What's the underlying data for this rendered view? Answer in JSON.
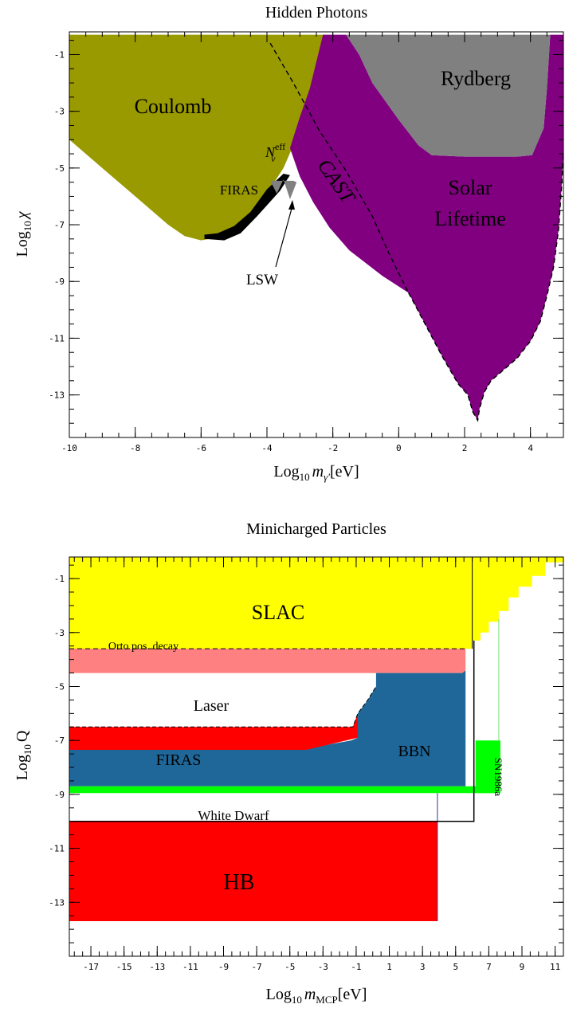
{
  "chart_data": [
    {
      "type": "area",
      "title": "Hidden Photons",
      "xlabel_main": "Log",
      "xlabel_sub": "10",
      "xlabel_var": "m",
      "xlabel_varsub": "γ'",
      "xlabel_unit": "[eV]",
      "ylabel_main": "Log",
      "ylabel_sub": "10",
      "ylabel_var": "χ",
      "xlim": [
        -10,
        5
      ],
      "ylim": [
        -14.5,
        -0.2
      ],
      "x_ticks": [
        -10,
        -8,
        -6,
        -4,
        -2,
        0,
        2,
        4
      ],
      "x_tick_labels": [
        "-10",
        "-8",
        "-6",
        "-4",
        "-2",
        "0",
        "2",
        "4"
      ],
      "y_ticks": [
        -1,
        -3,
        -5,
        -7,
        -9,
        -11,
        -13
      ],
      "y_tick_labels": [
        "-1",
        "-3",
        "-5",
        "-7",
        "-9",
        "-11",
        "-13"
      ],
      "regions": [
        {
          "name": "Coulomb",
          "label": "Coulomb",
          "color": "#999900"
        },
        {
          "name": "FIRAS",
          "label": "FIRAS",
          "color": "#000000"
        },
        {
          "name": "Rydberg",
          "label": "Rydberg",
          "color": "#808080"
        },
        {
          "name": "Solar Lifetime",
          "label_lines": [
            "Solar",
            "Lifetime"
          ],
          "color": "#800080"
        },
        {
          "name": "CAST",
          "label": "CAST",
          "style": "dashed boundary"
        },
        {
          "name": "LSW",
          "label": "LSW",
          "color": "#808080"
        }
      ],
      "neff_label": {
        "base": "N",
        "sub": "ν",
        "sup": "eff"
      },
      "boundaries": {
        "coulomb": [
          [
            -10,
            -4.0
          ],
          [
            -9,
            -5.0
          ],
          [
            -8,
            -6.0
          ],
          [
            -7,
            -7.0
          ],
          [
            -6.5,
            -7.4
          ],
          [
            -6,
            -7.55
          ],
          [
            -5.5,
            -7.45
          ],
          [
            -5,
            -7.15
          ],
          [
            -4.5,
            -6.6
          ],
          [
            -4,
            -5.9
          ],
          [
            -3.5,
            -5.0
          ],
          [
            -3.2,
            -4.2
          ],
          [
            -2.9,
            -3.0
          ],
          [
            -2.6,
            -2.2
          ],
          [
            -2.2,
            -0.3
          ],
          [
            -10,
            -0.3
          ]
        ],
        "firas": [
          [
            -5.9,
            -7.35
          ],
          [
            -5.5,
            -7.3
          ],
          [
            -5,
            -7.05
          ],
          [
            -4.5,
            -6.55
          ],
          [
            -4,
            -5.75
          ],
          [
            -3.5,
            -5.2
          ],
          [
            -3.3,
            -5.25
          ],
          [
            -3.6,
            -5.8
          ],
          [
            -4.3,
            -6.7
          ],
          [
            -4.8,
            -7.3
          ],
          [
            -5.3,
            -7.55
          ],
          [
            -5.9,
            -7.5
          ]
        ],
        "lsw": [
          [
            -3.9,
            -5.45
          ],
          [
            -3.7,
            -5.9
          ],
          [
            -3.5,
            -5.4
          ],
          [
            -3.3,
            -6.1
          ],
          [
            -3.1,
            -5.5
          ],
          [
            -2.9,
            -5.6
          ],
          [
            -3.2,
            -5.45
          ]
        ],
        "rydberg": [
          [
            -1.6,
            -0.3
          ],
          [
            -1.2,
            -1.0
          ],
          [
            -0.8,
            -2.0
          ],
          [
            0,
            -3.3
          ],
          [
            0.6,
            -4.2
          ],
          [
            1,
            -4.55
          ],
          [
            2,
            -4.6
          ],
          [
            3,
            -4.6
          ],
          [
            3.6,
            -4.6
          ],
          [
            4.05,
            -4.55
          ],
          [
            4.4,
            -3.6
          ],
          [
            4.5,
            -2.2
          ],
          [
            4.6,
            -0.3
          ]
        ],
        "solar": [
          [
            -2.3,
            -0.3
          ],
          [
            -2.7,
            -2.2
          ],
          [
            -3.0,
            -3.2
          ],
          [
            -3.3,
            -4.3
          ],
          [
            -3.0,
            -5.3
          ],
          [
            -2.6,
            -6.2
          ],
          [
            -2.1,
            -7.1
          ],
          [
            -1.5,
            -7.9
          ],
          [
            -0.5,
            -8.8
          ],
          [
            0.3,
            -9.4
          ],
          [
            0.8,
            -10.5
          ],
          [
            1.3,
            -11.6
          ],
          [
            1.8,
            -12.6
          ],
          [
            2.1,
            -13.0
          ],
          [
            2.25,
            -13.6
          ],
          [
            2.4,
            -13.9
          ],
          [
            2.45,
            -13.5
          ],
          [
            2.6,
            -12.9
          ],
          [
            2.8,
            -12.5
          ],
          [
            3.2,
            -12.1
          ],
          [
            3.6,
            -11.7
          ],
          [
            4.0,
            -11.1
          ],
          [
            4.3,
            -10.4
          ],
          [
            4.5,
            -9.5
          ],
          [
            4.7,
            -8.5
          ],
          [
            4.85,
            -7.2
          ],
          [
            4.95,
            -5.6
          ],
          [
            5,
            -4.4
          ],
          [
            5,
            -0.3
          ],
          [
            4.6,
            -0.3
          ],
          [
            4.5,
            -2.2
          ],
          [
            4.4,
            -3.6
          ],
          [
            4.05,
            -4.55
          ],
          [
            3.6,
            -4.6
          ],
          [
            3,
            -4.6
          ],
          [
            2,
            -4.6
          ],
          [
            1,
            -4.55
          ],
          [
            0.6,
            -4.2
          ],
          [
            0,
            -3.3
          ],
          [
            -0.8,
            -2.0
          ],
          [
            -1.2,
            -1.0
          ],
          [
            -1.6,
            -0.3
          ]
        ],
        "cast_line": [
          [
            -3.9,
            -0.6
          ],
          [
            -3.2,
            -2.0
          ],
          [
            -2.4,
            -3.7
          ],
          [
            -1.6,
            -5.1
          ],
          [
            -0.8,
            -6.7
          ],
          [
            -0.3,
            -8.0
          ],
          [
            0.3,
            -9.4
          ]
        ],
        "lower_dashed": [
          [
            0.3,
            -9.4
          ],
          [
            0.8,
            -10.5
          ],
          [
            1.3,
            -11.6
          ],
          [
            1.8,
            -12.6
          ],
          [
            2.1,
            -13.0
          ],
          [
            2.25,
            -13.6
          ],
          [
            2.4,
            -13.9
          ],
          [
            2.45,
            -13.5
          ],
          [
            2.6,
            -12.9
          ],
          [
            2.8,
            -12.5
          ],
          [
            3.2,
            -12.1
          ],
          [
            3.6,
            -11.7
          ],
          [
            4.0,
            -11.1
          ],
          [
            4.3,
            -10.4
          ],
          [
            4.5,
            -9.5
          ],
          [
            4.7,
            -8.5
          ],
          [
            4.85,
            -7.2
          ],
          [
            4.95,
            -5.6
          ],
          [
            5,
            -4.4
          ]
        ]
      }
    },
    {
      "type": "area",
      "title": "Minicharged Particles",
      "xlabel_main": "Log",
      "xlabel_sub": "10",
      "xlabel_var": "m",
      "xlabel_varsub": "MCP",
      "xlabel_unit": "[eV]",
      "ylabel_main": "Log",
      "ylabel_sub": "10",
      "ylabel_var": "Q",
      "xlim": [
        -18.3,
        11.5
      ],
      "ylim": [
        -15.0,
        -0.2
      ],
      "x_ticks": [
        -17,
        -15,
        -13,
        -11,
        -9,
        -7,
        -5,
        -3,
        -1,
        1,
        3,
        5,
        7,
        9,
        11
      ],
      "x_tick_labels": [
        "-17",
        "-15",
        "-13",
        "-11",
        "-9",
        "-7",
        "-5",
        "-3",
        "-1",
        "1",
        "3",
        "5",
        "7",
        "9",
        "11"
      ],
      "y_ticks": [
        -1,
        -3,
        -5,
        -7,
        -9,
        -11,
        -13
      ],
      "y_tick_labels": [
        "-1",
        "-3",
        "-5",
        "-7",
        "-9",
        "-11",
        "-13"
      ],
      "regions": [
        {
          "name": "SLAC",
          "label": "SLAC",
          "color": "#ffff00"
        },
        {
          "name": "Orto pos. decay",
          "label": "Orto pos. decay",
          "color": "#ff8080"
        },
        {
          "name": "Laser",
          "label": "Laser",
          "color": "#ffffff"
        },
        {
          "name": "FIRAS",
          "label": "FIRAS",
          "color": "#ff0000"
        },
        {
          "name": "BBN",
          "label": "BBN",
          "color": "#1f6799"
        },
        {
          "name": "SN1986a",
          "label": "SN1986a",
          "color": "#00ff00"
        },
        {
          "name": "White Dwarf",
          "label": "White Dwarf",
          "style": "black outline"
        },
        {
          "name": "HB",
          "label": "HB",
          "color": "#ff0000"
        }
      ],
      "boundaries": {
        "slac": [
          [
            -18.3,
            -0.2
          ],
          [
            11.5,
            -0.2
          ],
          [
            11.5,
            -0.4
          ],
          [
            10.4,
            -0.4
          ],
          [
            10.4,
            -0.9
          ],
          [
            9.6,
            -0.9
          ],
          [
            9.6,
            -1.3
          ],
          [
            8.8,
            -1.3
          ],
          [
            8.8,
            -1.7
          ],
          [
            8.2,
            -1.7
          ],
          [
            8.2,
            -2.2
          ],
          [
            7.6,
            -2.2
          ],
          [
            7.6,
            -2.6
          ],
          [
            7.0,
            -2.6
          ],
          [
            7.0,
            -3.0
          ],
          [
            6.5,
            -3.0
          ],
          [
            6.5,
            -3.3
          ],
          [
            6.0,
            -3.3
          ],
          [
            6.0,
            -3.6
          ],
          [
            5.0,
            -3.6
          ],
          [
            -18.3,
            -3.6
          ]
        ],
        "orto": [
          [
            -18.3,
            -3.6
          ],
          [
            5.6,
            -3.6
          ],
          [
            5.6,
            -4.4
          ],
          [
            5.4,
            -4.5
          ],
          [
            -18.3,
            -4.5
          ]
        ],
        "bbn": [
          [
            -18.3,
            -7.3
          ],
          [
            -4,
            -7.3
          ],
          [
            -1.3,
            -7.0
          ],
          [
            -0.9,
            -6.9
          ],
          [
            -0.9,
            -6.0
          ],
          [
            -0.3,
            -5.5
          ],
          [
            0.2,
            -5.0
          ],
          [
            0.2,
            -4.5
          ],
          [
            5.4,
            -4.5
          ],
          [
            5.6,
            -4.4
          ],
          [
            5.6,
            -8.7
          ],
          [
            -18.3,
            -8.7
          ]
        ],
        "firas": [
          [
            -18.3,
            -6.5
          ],
          [
            -1.2,
            -6.5
          ],
          [
            -0.9,
            -6.0
          ],
          [
            -0.9,
            -6.9
          ],
          [
            -4,
            -7.35
          ],
          [
            -18.3,
            -7.35
          ]
        ],
        "green_band": [
          [
            -18.3,
            -8.7
          ],
          [
            7.7,
            -8.7
          ],
          [
            7.7,
            -8.95
          ],
          [
            -18.3,
            -8.95
          ]
        ],
        "sn": [
          [
            6.2,
            -7.0
          ],
          [
            7.7,
            -7.0
          ],
          [
            7.7,
            -8.95
          ],
          [
            6.2,
            -8.95
          ]
        ],
        "sn_line": [
          [
            7.6,
            -2.5
          ],
          [
            7.6,
            -7.0
          ]
        ],
        "hb": [
          [
            -18.3,
            -10.0
          ],
          [
            3.9,
            -10.0
          ],
          [
            3.9,
            -13.7
          ],
          [
            -18.3,
            -13.7
          ]
        ],
        "hb_blue": [
          [
            3.9,
            -8.95
          ],
          [
            3.9,
            -13.7
          ]
        ],
        "white_dwarf": [
          [
            -18.3,
            -10.0
          ],
          [
            6.1,
            -10.0
          ],
          [
            6.1,
            -3.3
          ]
        ],
        "slac_dash": [
          [
            -18.3,
            -3.6
          ],
          [
            5.6,
            -3.6
          ]
        ],
        "laser_dash": [
          [
            -18.3,
            -6.5
          ],
          [
            -1.2,
            -6.5
          ],
          [
            -0.9,
            -6.0
          ],
          [
            -0.3,
            -5.5
          ],
          [
            0.2,
            -5.0
          ]
        ],
        "vline": [
          [
            6.0,
            -0.2
          ],
          [
            6.0,
            -3.6
          ]
        ]
      }
    }
  ]
}
